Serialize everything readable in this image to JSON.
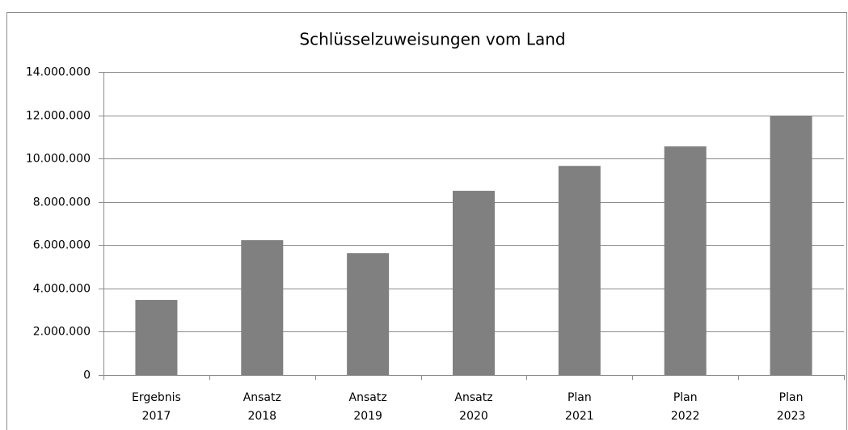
{
  "chart_data": {
    "type": "bar",
    "title": "Schlüsselzuweisungen vom Land",
    "categories": [
      [
        "Ergebnis",
        "2017"
      ],
      [
        "Ansatz",
        "2018"
      ],
      [
        "Ansatz",
        "2019"
      ],
      [
        "Ansatz",
        "2020"
      ],
      [
        "Plan",
        "2021"
      ],
      [
        "Plan",
        "2022"
      ],
      [
        "Plan",
        "2023"
      ]
    ],
    "values": [
      3470000,
      6230000,
      5630000,
      8510000,
      9660000,
      10560000,
      11980000
    ],
    "color": "#808080",
    "ylim": [
      0,
      14000000
    ],
    "yticks": [
      0,
      {
        "value": 2000000,
        "label": "2.000.000"
      },
      {
        "value": 4000000,
        "label": "4.000.000"
      },
      {
        "value": 6000000,
        "label": "6.000.000"
      },
      {
        "value": 8000000,
        "label": "8.000.000"
      },
      {
        "value": 10000000,
        "label": "10.000.000"
      },
      {
        "value": 12000000,
        "label": "12.000.000"
      },
      {
        "value": 14000000,
        "label": "14.000.000"
      }
    ],
    "grid": true
  }
}
